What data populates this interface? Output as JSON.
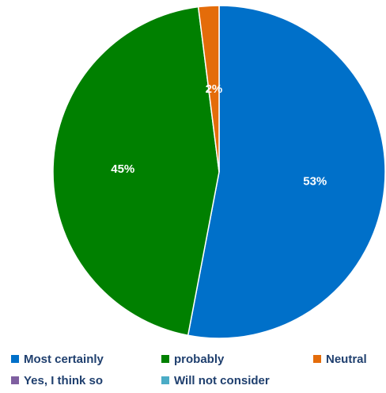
{
  "chart_data": {
    "type": "pie",
    "title": "",
    "slices": [
      {
        "label": "Most certainly",
        "value": 53,
        "display": "53%",
        "color": "#0070c9"
      },
      {
        "label": "probably",
        "value": 45,
        "display": "45%",
        "color": "#008000"
      },
      {
        "label": "Neutral",
        "value": 2,
        "display": "2%",
        "color": "#e46c0a"
      },
      {
        "label": "Yes, I think so",
        "value": 0,
        "display": "",
        "color": "#7f5fa0"
      },
      {
        "label": "Will not consider",
        "value": 0,
        "display": "",
        "color": "#4bacc6"
      }
    ],
    "legend_position": "bottom"
  }
}
